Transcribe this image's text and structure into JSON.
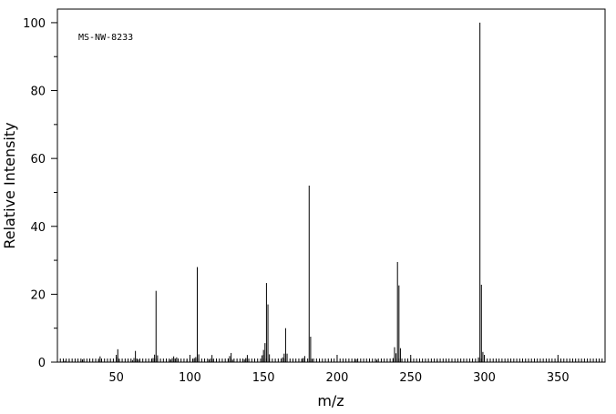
{
  "chart_data": {
    "type": "bar",
    "title": "",
    "annotation": "MS-NW-8233",
    "xlabel": "m/z",
    "ylabel": "Relative Intensity",
    "xlim": [
      10,
      382
    ],
    "ylim": [
      0,
      104
    ],
    "x_ticks": [
      50,
      100,
      150,
      200,
      250,
      300,
      350
    ],
    "y_ticks": [
      0,
      20,
      40,
      60,
      80,
      100
    ],
    "grid": false,
    "color": "#000000",
    "peaks": [
      {
        "mz": 15,
        "intensity": 0.4
      },
      {
        "mz": 18,
        "intensity": 0.5
      },
      {
        "mz": 26,
        "intensity": 0.4
      },
      {
        "mz": 27,
        "intensity": 0.8
      },
      {
        "mz": 28,
        "intensity": 0.6
      },
      {
        "mz": 38,
        "intensity": 0.7
      },
      {
        "mz": 39,
        "intensity": 1.7
      },
      {
        "mz": 50,
        "intensity": 1.5
      },
      {
        "mz": 51,
        "intensity": 3.8
      },
      {
        "mz": 52,
        "intensity": 0.8
      },
      {
        "mz": 61,
        "intensity": 0.6
      },
      {
        "mz": 62,
        "intensity": 1.2
      },
      {
        "mz": 63,
        "intensity": 3.3
      },
      {
        "mz": 64,
        "intensity": 1.0
      },
      {
        "mz": 65,
        "intensity": 0.8
      },
      {
        "mz": 74,
        "intensity": 0.7
      },
      {
        "mz": 75,
        "intensity": 1.2
      },
      {
        "mz": 76,
        "intensity": 2.2
      },
      {
        "mz": 77,
        "intensity": 21.0
      },
      {
        "mz": 78,
        "intensity": 2.0
      },
      {
        "mz": 86,
        "intensity": 0.6
      },
      {
        "mz": 87,
        "intensity": 0.8
      },
      {
        "mz": 88,
        "intensity": 1.2
      },
      {
        "mz": 89,
        "intensity": 1.7
      },
      {
        "mz": 90,
        "intensity": 1.0
      },
      {
        "mz": 91,
        "intensity": 1.4
      },
      {
        "mz": 98,
        "intensity": 0.7
      },
      {
        "mz": 102,
        "intensity": 0.8
      },
      {
        "mz": 103,
        "intensity": 1.2
      },
      {
        "mz": 104,
        "intensity": 1.5
      },
      {
        "mz": 105,
        "intensity": 28.0
      },
      {
        "mz": 106,
        "intensity": 2.3
      },
      {
        "mz": 113,
        "intensity": 0.8
      },
      {
        "mz": 114,
        "intensity": 1.0
      },
      {
        "mz": 115,
        "intensity": 2.1
      },
      {
        "mz": 116,
        "intensity": 0.8
      },
      {
        "mz": 126,
        "intensity": 1.1
      },
      {
        "mz": 127,
        "intensity": 1.8
      },
      {
        "mz": 128,
        "intensity": 2.7
      },
      {
        "mz": 129,
        "intensity": 0.7
      },
      {
        "mz": 137,
        "intensity": 0.8
      },
      {
        "mz": 138,
        "intensity": 1.2
      },
      {
        "mz": 139,
        "intensity": 2.1
      },
      {
        "mz": 140,
        "intensity": 0.9
      },
      {
        "mz": 149,
        "intensity": 2.0
      },
      {
        "mz": 150,
        "intensity": 3.6
      },
      {
        "mz": 151,
        "intensity": 5.6
      },
      {
        "mz": 152,
        "intensity": 23.3
      },
      {
        "mz": 153,
        "intensity": 17.0
      },
      {
        "mz": 154,
        "intensity": 2.3
      },
      {
        "mz": 163,
        "intensity": 1.4
      },
      {
        "mz": 164,
        "intensity": 2.5
      },
      {
        "mz": 165,
        "intensity": 10.0
      },
      {
        "mz": 166,
        "intensity": 2.5
      },
      {
        "mz": 176,
        "intensity": 0.9
      },
      {
        "mz": 177,
        "intensity": 1.2
      },
      {
        "mz": 178,
        "intensity": 1.8
      },
      {
        "mz": 181,
        "intensity": 52.0
      },
      {
        "mz": 182,
        "intensity": 7.5
      },
      {
        "mz": 183,
        "intensity": 1.0
      },
      {
        "mz": 212,
        "intensity": 0.6
      },
      {
        "mz": 213,
        "intensity": 0.9
      },
      {
        "mz": 226,
        "intensity": 0.8
      },
      {
        "mz": 227,
        "intensity": 0.7
      },
      {
        "mz": 238,
        "intensity": 1.2
      },
      {
        "mz": 239,
        "intensity": 4.4
      },
      {
        "mz": 240,
        "intensity": 2.6
      },
      {
        "mz": 241,
        "intensity": 29.5
      },
      {
        "mz": 242,
        "intensity": 22.6
      },
      {
        "mz": 243,
        "intensity": 4.1
      },
      {
        "mz": 268,
        "intensity": 0.6
      },
      {
        "mz": 296,
        "intensity": 1.4
      },
      {
        "mz": 297,
        "intensity": 100.0
      },
      {
        "mz": 298,
        "intensity": 22.8
      },
      {
        "mz": 299,
        "intensity": 3.0
      }
    ]
  }
}
